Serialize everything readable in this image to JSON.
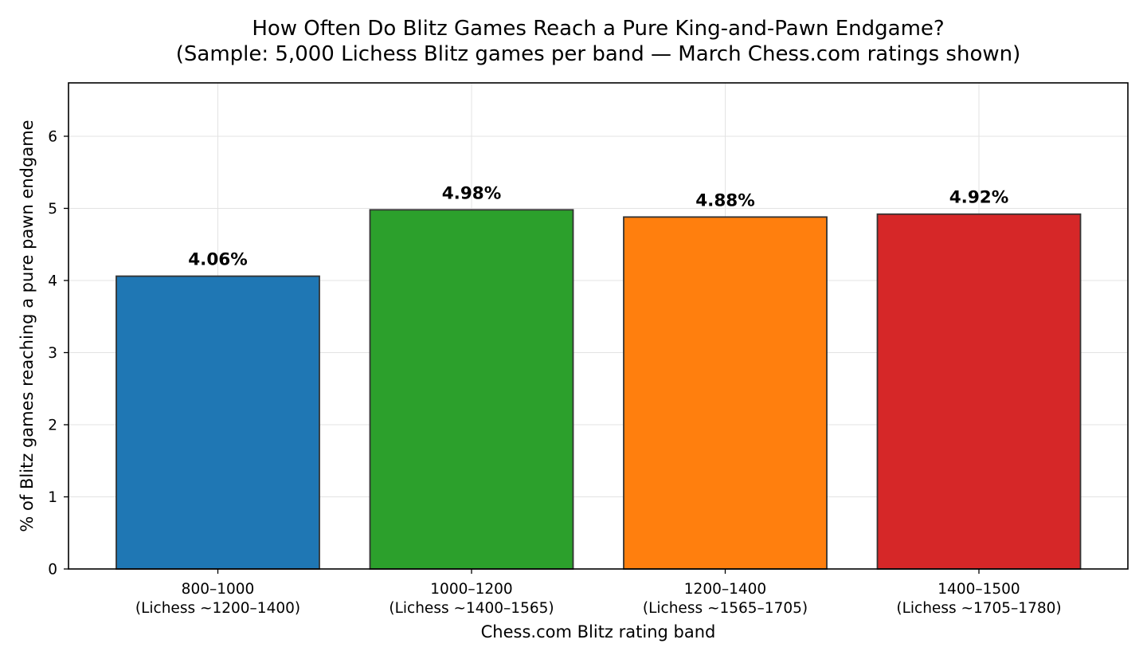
{
  "chart_data": {
    "type": "bar",
    "title": "How Often Do Blitz Games Reach a Pure King-and-Pawn Endgame?",
    "subtitle": "(Sample: 5,000 Lichess Blitz games per band — March Chess.com ratings shown)",
    "xlabel": "Chess.com Blitz rating band",
    "ylabel": "% of Blitz games reaching a pure pawn endgame",
    "categories": [
      "800–1000",
      "1000–1200",
      "1200–1400",
      "1400–1500"
    ],
    "category_sublabels": [
      "(Lichess ~1200–1400)",
      "(Lichess ~1400–1565)",
      "(Lichess ~1565–1705)",
      "(Lichess ~1705–1780)"
    ],
    "values": [
      4.06,
      4.98,
      4.88,
      4.92
    ],
    "data_labels": [
      "4.06%",
      "4.98%",
      "4.88%",
      "4.92%"
    ],
    "colors": [
      "#1f77b4",
      "#2ca02c",
      "#ff7f0e",
      "#d62728"
    ],
    "ylim": [
      0,
      6.74
    ],
    "yticks": [
      0,
      1,
      2,
      3,
      4,
      5,
      6
    ],
    "grid": true,
    "legend": "none"
  }
}
